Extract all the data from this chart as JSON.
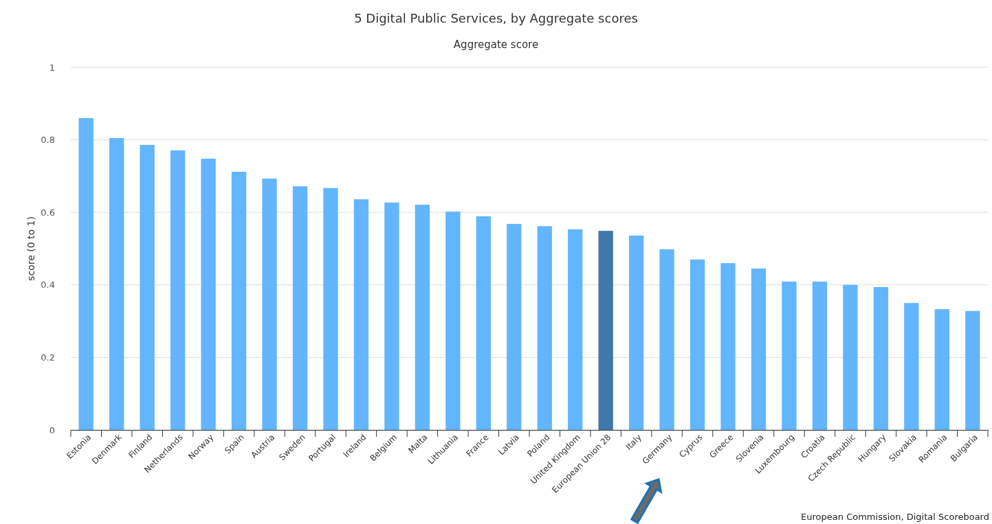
{
  "chart_data": {
    "type": "bar",
    "title": "5 Digital Public Services, by Aggregate scores",
    "subtitle": "Aggregate score",
    "ylabel": "score (0 to 1)",
    "categories": [
      "Estonia",
      "Denmark",
      "Finland",
      "Netherlands",
      "Norway",
      "Spain",
      "Austria",
      "Sweden",
      "Portugal",
      "Ireland",
      "Belgium",
      "Malta",
      "Lithuania",
      "France",
      "Latvia",
      "Poland",
      "United Kingdom",
      "European Union 28",
      "Italy",
      "Germany",
      "Cyprus",
      "Greece",
      "Slovenia",
      "Luxembourg",
      "Croatia",
      "Czech Republic",
      "Hungary",
      "Slovakia",
      "Romania",
      "Bulgaria"
    ],
    "values": [
      0.86,
      0.805,
      0.786,
      0.771,
      0.748,
      0.712,
      0.693,
      0.672,
      0.667,
      0.636,
      0.627,
      0.621,
      0.602,
      0.589,
      0.568,
      0.562,
      0.553,
      0.549,
      0.536,
      0.498,
      0.47,
      0.46,
      0.445,
      0.409,
      0.409,
      0.4,
      0.394,
      0.35,
      0.333,
      0.328
    ],
    "colors": [
      "#63b5fe",
      "#63b5fe",
      "#63b5fe",
      "#63b5fe",
      "#63b5fe",
      "#63b5fe",
      "#63b5fe",
      "#63b5fe",
      "#63b5fe",
      "#63b5fe",
      "#63b5fe",
      "#63b5fe",
      "#63b5fe",
      "#63b5fe",
      "#63b5fe",
      "#63b5fe",
      "#63b5fe",
      "#4278a8",
      "#63b5fe",
      "#63b5fe",
      "#63b5fe",
      "#63b5fe",
      "#63b5fe",
      "#63b5fe",
      "#63b5fe",
      "#63b5fe",
      "#63b5fe",
      "#63b5fe",
      "#63b5fe",
      "#63b5fe"
    ],
    "ylim": [
      0,
      1
    ],
    "yticks": [
      0,
      0.2,
      0.4,
      0.6,
      0.8,
      1
    ],
    "grid": "y",
    "annotations": [
      "European Commission, Digital Scoreboard"
    ]
  }
}
